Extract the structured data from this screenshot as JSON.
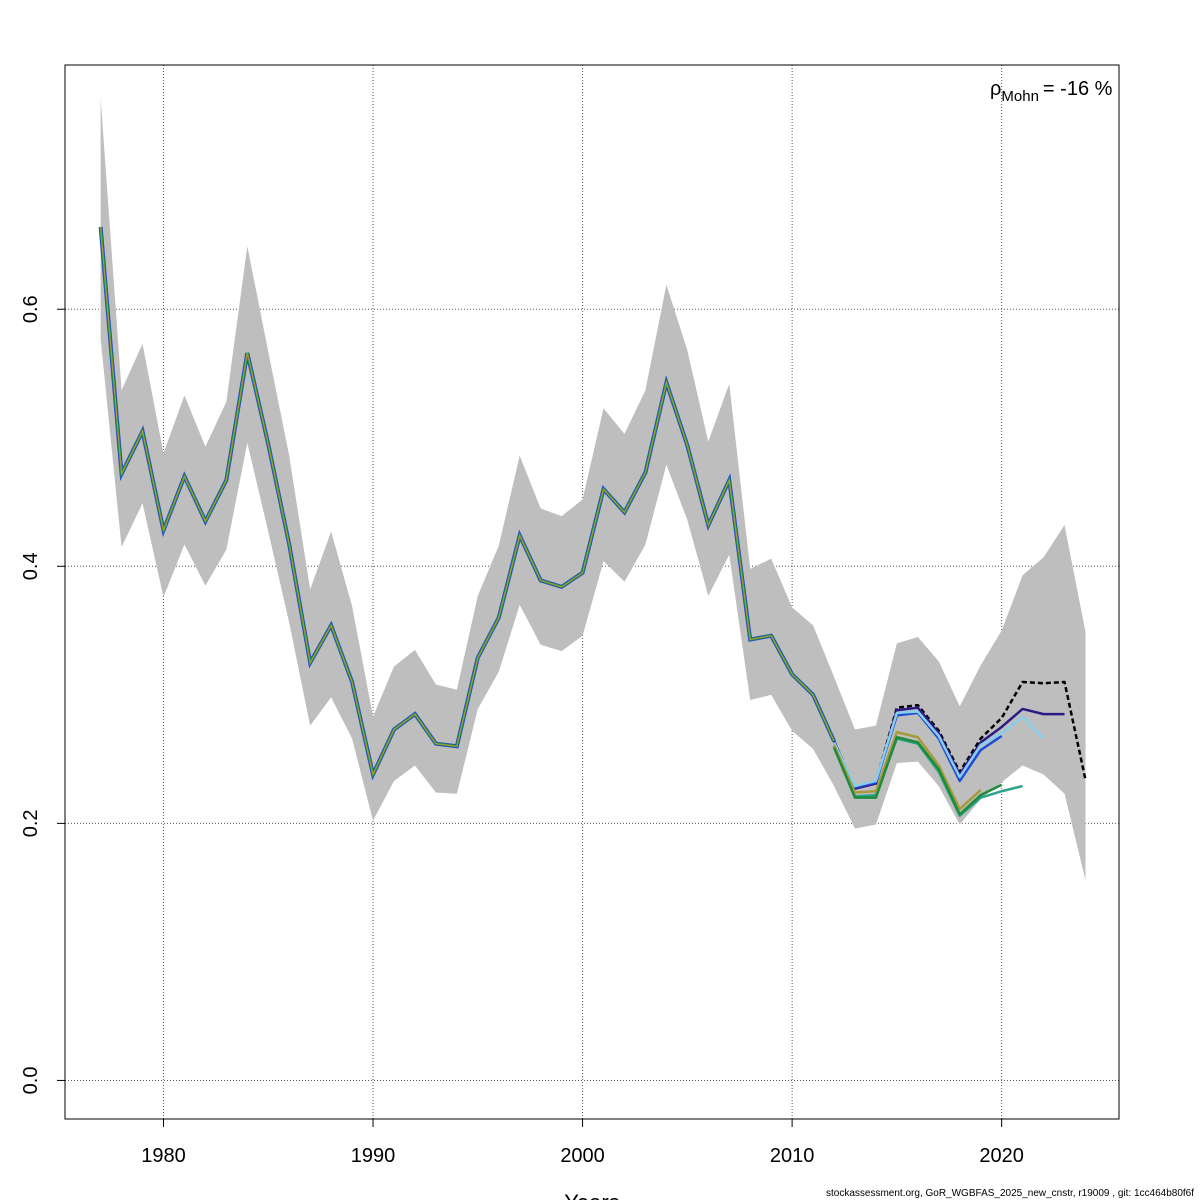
{
  "chart_data": {
    "type": "line",
    "xlabel": "Years",
    "ylabel": "",
    "xlim": [
      1975.3,
      2025.6
    ],
    "ylim": [
      -0.03,
      0.79
    ],
    "xticks": [
      1980,
      1990,
      2000,
      2010,
      2020
    ],
    "yticks": [
      0.0,
      0.2,
      0.4,
      0.6
    ],
    "xtick_labels": [
      "1980",
      "1990",
      "2000",
      "2010",
      "2020"
    ],
    "ytick_labels": [
      "0.0",
      "0.2",
      "0.4",
      "0.6"
    ],
    "grid": true,
    "annotation": {
      "symbol": "ρ",
      "subscript": "Mohn",
      "text": "= -16 %"
    },
    "band": {
      "x": [
        1977,
        1978,
        1979,
        1980,
        1981,
        1982,
        1983,
        1984,
        1985,
        1986,
        1987,
        1988,
        1989,
        1990,
        1991,
        1992,
        1993,
        1994,
        1995,
        1996,
        1997,
        1998,
        1999,
        2000,
        2001,
        2002,
        2003,
        2004,
        2005,
        2006,
        2007,
        2008,
        2009,
        2010,
        2011,
        2012,
        2013,
        2014,
        2015,
        2016,
        2017,
        2018,
        2019,
        2020,
        2021,
        2022,
        2023,
        2024
      ],
      "upper": [
        0.764,
        0.537,
        0.573,
        0.488,
        0.533,
        0.493,
        0.528,
        0.649,
        0.567,
        0.486,
        0.382,
        0.427,
        0.369,
        0.283,
        0.322,
        0.335,
        0.308,
        0.304,
        0.377,
        0.416,
        0.486,
        0.445,
        0.439,
        0.452,
        0.523,
        0.503,
        0.537,
        0.619,
        0.568,
        0.497,
        0.542,
        0.398,
        0.406,
        0.368,
        0.354,
        0.314,
        0.273,
        0.276,
        0.34,
        0.345,
        0.326,
        0.291,
        0.323,
        0.35,
        0.393,
        0.407,
        0.432,
        0.349
      ],
      "lower": [
        0.577,
        0.415,
        0.449,
        0.376,
        0.417,
        0.385,
        0.413,
        0.496,
        0.427,
        0.356,
        0.276,
        0.298,
        0.266,
        0.202,
        0.233,
        0.245,
        0.224,
        0.223,
        0.289,
        0.318,
        0.37,
        0.339,
        0.334,
        0.346,
        0.404,
        0.388,
        0.417,
        0.479,
        0.436,
        0.377,
        0.409,
        0.296,
        0.3,
        0.272,
        0.258,
        0.229,
        0.196,
        0.199,
        0.247,
        0.248,
        0.229,
        0.199,
        0.219,
        0.232,
        0.245,
        0.238,
        0.223,
        0.156
      ]
    },
    "base": {
      "x": [
        1977,
        1978,
        1979,
        1980,
        1981,
        1982,
        1983,
        1984,
        1985,
        1986,
        1987,
        1988,
        1989,
        1990,
        1991,
        1992,
        1993,
        1994,
        1995,
        1996,
        1997,
        1998,
        1999,
        2000,
        2001,
        2002,
        2003,
        2004,
        2005,
        2006,
        2007,
        2008,
        2009,
        2010,
        2011,
        2012
      ],
      "y": [
        0.664,
        0.472,
        0.505,
        0.428,
        0.47,
        0.435,
        0.467,
        0.566,
        0.495,
        0.417,
        0.325,
        0.354,
        0.31,
        0.238,
        0.273,
        0.285,
        0.262,
        0.26,
        0.329,
        0.36,
        0.424,
        0.389,
        0.384,
        0.395,
        0.46,
        0.442,
        0.473,
        0.543,
        0.494,
        0.432,
        0.467,
        0.343,
        0.346,
        0.316,
        0.3,
        0.264
      ]
    },
    "series": [
      {
        "color": "#000000",
        "dashed": true,
        "x": [
          2012,
          2013,
          2014,
          2015,
          2016,
          2017,
          2018,
          2019,
          2020,
          2021,
          2022,
          2023,
          2024
        ],
        "y": [
          0.264,
          0.228,
          0.232,
          0.29,
          0.292,
          0.272,
          0.24,
          0.266,
          0.282,
          0.31,
          0.309,
          0.31,
          0.234
        ]
      },
      {
        "color": "#2e1a87",
        "x": [
          2012,
          2013,
          2014,
          2015,
          2016,
          2017,
          2018,
          2019,
          2020,
          2021,
          2022,
          2023
        ],
        "y": [
          0.264,
          0.227,
          0.231,
          0.288,
          0.29,
          0.27,
          0.238,
          0.263,
          0.275,
          0.289,
          0.285,
          0.285
        ]
      },
      {
        "color": "#1f4bd6",
        "x": [
          2012,
          2013,
          2014,
          2015,
          2016,
          2017,
          2018,
          2019,
          2020
        ],
        "y": [
          0.263,
          0.228,
          0.232,
          0.284,
          0.286,
          0.266,
          0.233,
          0.257,
          0.268
        ]
      },
      {
        "color": "#87ceeb",
        "x": [
          2012,
          2013,
          2014,
          2015,
          2016,
          2017,
          2018,
          2019,
          2020,
          2021,
          2022
        ],
        "y": [
          0.263,
          0.229,
          0.233,
          0.286,
          0.287,
          0.268,
          0.236,
          0.261,
          0.27,
          0.283,
          0.266
        ]
      },
      {
        "color": "#2aa38a",
        "x": [
          2012,
          2013,
          2014,
          2015,
          2016,
          2017,
          2018,
          2019,
          2020,
          2021
        ],
        "y": [
          0.26,
          0.221,
          0.222,
          0.266,
          0.262,
          0.24,
          0.206,
          0.22,
          0.225,
          0.229
        ]
      },
      {
        "color": "#a69a3c",
        "x": [
          2012,
          2013,
          2014,
          2015,
          2016,
          2017,
          2018,
          2019
        ],
        "y": [
          0.261,
          0.224,
          0.225,
          0.271,
          0.267,
          0.245,
          0.211,
          0.226
        ]
      },
      {
        "color": "#1e8b3a",
        "x": [
          2012,
          2013,
          2014,
          2015,
          2016,
          2017,
          2018,
          2019,
          2020
        ],
        "y": [
          0.259,
          0.22,
          0.22,
          0.267,
          0.263,
          0.242,
          0.207,
          0.222,
          0.23
        ]
      }
    ]
  },
  "footer": "stockassessment.org, GoR_WGBFAS_2025_new_cnstr, r19009 , git: 1cc464b80f6f"
}
